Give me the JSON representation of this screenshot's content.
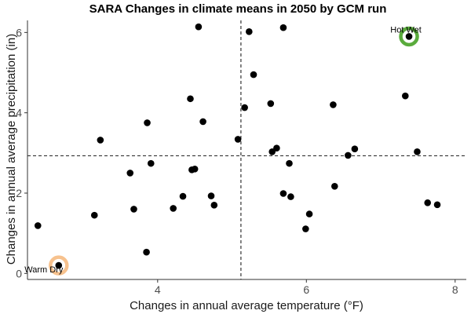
{
  "chart_data": {
    "type": "scatter",
    "title": "SARA Changes in climate means in 2050 by GCM run",
    "xlabel": "Changes in annual average temperature (°F)",
    "ylabel": "Changes in annual average precipitation (in)",
    "xlim": [
      2.25,
      8.15
    ],
    "ylim": [
      -0.15,
      6.3
    ],
    "x_ticks": [
      4,
      6,
      8
    ],
    "y_ticks": [
      0,
      2,
      4,
      6
    ],
    "grid": false,
    "reference_lines": {
      "x": 5.12,
      "y": 2.93
    },
    "point_color": "#000000",
    "points": [
      {
        "x": 2.39,
        "y": 1.19
      },
      {
        "x": 3.15,
        "y": 1.45
      },
      {
        "x": 3.23,
        "y": 3.32
      },
      {
        "x": 3.63,
        "y": 2.5
      },
      {
        "x": 3.68,
        "y": 1.6
      },
      {
        "x": 3.85,
        "y": 0.53
      },
      {
        "x": 3.86,
        "y": 3.75
      },
      {
        "x": 3.91,
        "y": 2.74
      },
      {
        "x": 4.21,
        "y": 1.62
      },
      {
        "x": 4.34,
        "y": 1.92
      },
      {
        "x": 4.44,
        "y": 4.35
      },
      {
        "x": 4.46,
        "y": 2.58
      },
      {
        "x": 4.5,
        "y": 2.6
      },
      {
        "x": 4.55,
        "y": 6.14
      },
      {
        "x": 4.61,
        "y": 3.78
      },
      {
        "x": 4.72,
        "y": 1.93
      },
      {
        "x": 4.76,
        "y": 1.7
      },
      {
        "x": 5.08,
        "y": 3.34
      },
      {
        "x": 5.17,
        "y": 4.13
      },
      {
        "x": 5.23,
        "y": 6.02
      },
      {
        "x": 5.29,
        "y": 4.95
      },
      {
        "x": 5.52,
        "y": 4.23
      },
      {
        "x": 5.54,
        "y": 3.03
      },
      {
        "x": 5.6,
        "y": 3.12
      },
      {
        "x": 5.69,
        "y": 6.12
      },
      {
        "x": 5.69,
        "y": 1.99
      },
      {
        "x": 5.77,
        "y": 2.74
      },
      {
        "x": 5.79,
        "y": 1.91
      },
      {
        "x": 5.99,
        "y": 1.11
      },
      {
        "x": 6.04,
        "y": 1.48
      },
      {
        "x": 6.36,
        "y": 4.2
      },
      {
        "x": 6.38,
        "y": 2.17
      },
      {
        "x": 6.56,
        "y": 2.94
      },
      {
        "x": 6.65,
        "y": 3.1
      },
      {
        "x": 7.33,
        "y": 4.42
      },
      {
        "x": 7.38,
        "y": 5.9
      },
      {
        "x": 7.49,
        "y": 3.03
      },
      {
        "x": 7.63,
        "y": 1.76
      },
      {
        "x": 7.76,
        "y": 1.71
      },
      {
        "x": 2.67,
        "y": 0.2
      }
    ],
    "annotations": [
      {
        "label": "Hot Wet",
        "x": 7.38,
        "y": 5.9,
        "ring_color": "#5aab3c",
        "label_anchor": "middle",
        "label_dy": -5,
        "label_dx": -4
      },
      {
        "label": "Warm Dry",
        "x": 2.67,
        "y": 0.2,
        "ring_color": "#f7c28e",
        "label_anchor": "middle",
        "label_dy": 9,
        "label_dx": -19
      }
    ]
  }
}
